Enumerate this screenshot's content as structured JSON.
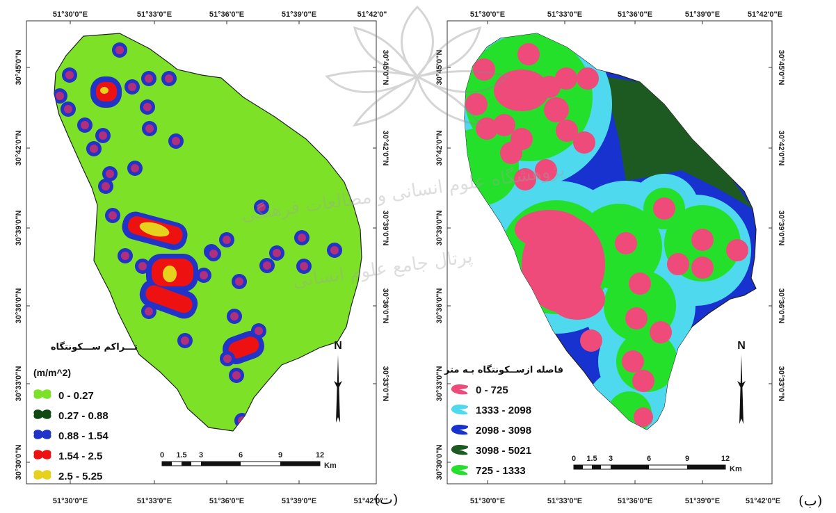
{
  "panels": [
    {
      "id": "right",
      "letter": "(ت)",
      "top_ticks": [
        "51°30'0\"E",
        "51°33'0\"E",
        "51°36'0\"E",
        "51°39'0\"E",
        "51°42'0\""
      ],
      "bottom_ticks": [
        "51°30'0\"E",
        "51°33'0\"E",
        "51°36'0\"E",
        "51°39'0\"E",
        "51°42'0\""
      ],
      "left_ticks": [
        "30°45'0\"N",
        "30°42'0\"N",
        "30°39'0\"N",
        "30°36'0\"N",
        "30°33'0\"N",
        "30°30'0\"N"
      ],
      "right_ticks": [
        "30°45'0\"N",
        "30°42'0\"N",
        "30°39'0\"N",
        "30°36'0\"N",
        "30°33'0\"N"
      ],
      "legend": {
        "title": "تـــراکم ســـکونتگاه",
        "unit": "(m/m^2)",
        "items": [
          {
            "label": "0 - 0.27",
            "color": "#7de227"
          },
          {
            "label": "0.27 - 0.88",
            "color": "#0f4a12"
          },
          {
            "label": "0.88 - 1.54",
            "color": "#2233c8"
          },
          {
            "label": "1.54 - 2.5",
            "color": "#ee1111"
          },
          {
            "label": "2.5 - 5.25",
            "color": "#e6d21c"
          }
        ]
      },
      "north": "N",
      "scale": {
        "ticks": [
          "0",
          "1.5",
          "3",
          "6",
          "9",
          "12"
        ],
        "unit": "Km"
      }
    },
    {
      "id": "left",
      "letter": "(ب)",
      "top_ticks": [
        "51°30'0\"E",
        "51°33'0\"E",
        "51°36'0\"E",
        "51°39'0\"E",
        "51°42'0\"E"
      ],
      "bottom_ticks": [
        "51°30'0\"E",
        "51°33'0\"E",
        "51°36'0\"E",
        "51°39'0\"E",
        "51°42'0\"E"
      ],
      "left_ticks": [
        "30°45'0\"N",
        "30°42'0\"N",
        "30°39'0\"N",
        "30°36'0\"N",
        "30°33'0\"N",
        "30°30'0\"N"
      ],
      "right_ticks": [
        "30°45'0\"N",
        "30°42'0\"N",
        "30°39'0\"N",
        "30°36'0\"N",
        "30°33'0\"N"
      ],
      "legend": {
        "title": "فاصله ازســکونتگاه بـه متر",
        "items": [
          {
            "label": "0 - 725",
            "color": "#ee4a7a"
          },
          {
            "label": "1333 - 2098",
            "color": "#4fd9ee"
          },
          {
            "label": "2098 - 3098",
            "color": "#1832d0"
          },
          {
            "label": "3098 - 5021",
            "color": "#1d5a22"
          },
          {
            "label": "725 - 1333",
            "color": "#25e02a"
          }
        ]
      },
      "north": "N",
      "scale": {
        "ticks": [
          "0",
          "1.5",
          "3",
          "6",
          "9",
          "12"
        ],
        "unit": "Km"
      }
    }
  ],
  "watermark": {
    "line1": "پژوهشگاه علوم انسانی و مطالعات فرهنگی",
    "line2": "پرتال جامع علوم انسانی"
  }
}
